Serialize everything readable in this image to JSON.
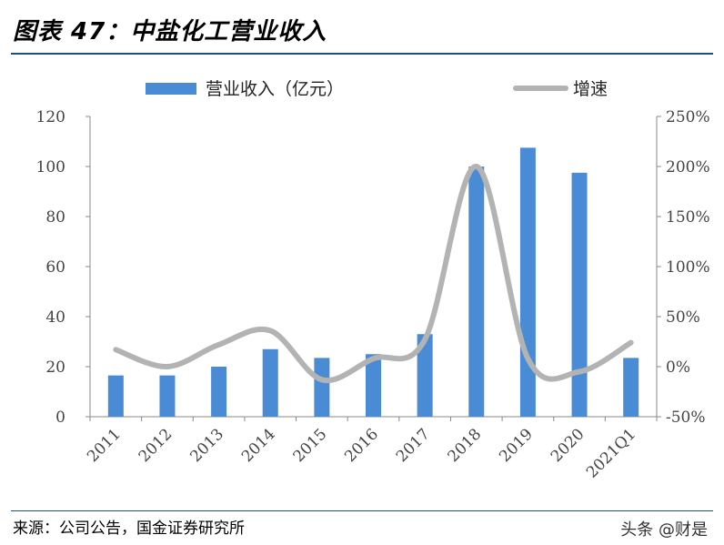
{
  "header": {
    "title": "图表 47：中盐化工营业收入"
  },
  "footer": {
    "source": "来源：公司公告，国金证券研究所",
    "watermark": "头条 @财是"
  },
  "colors": {
    "bar": "#4a8bd6",
    "line": "#b3b3b3",
    "rule": "#1f4e79"
  },
  "chart_data": {
    "type": "bar",
    "categories": [
      "2011",
      "2012",
      "2013",
      "2014",
      "2015",
      "2016",
      "2017",
      "2018",
      "2019",
      "2020",
      "2021Q1"
    ],
    "series": [
      {
        "name": "营业收入（亿元）",
        "type": "bar",
        "axis": "left",
        "values": [
          16.5,
          16.5,
          20,
          27,
          23.5,
          25,
          33,
          100,
          107.5,
          97.5,
          23.5
        ]
      },
      {
        "name": "增速",
        "type": "line",
        "axis": "right",
        "unit": "%",
        "values": [
          17,
          0,
          22,
          36,
          -13,
          8,
          27,
          200,
          8,
          -5,
          24
        ]
      }
    ],
    "y_left": {
      "lim": [
        0,
        120
      ],
      "ticks": [
        "0",
        "20",
        "40",
        "60",
        "80",
        "100",
        "120"
      ]
    },
    "y_right": {
      "lim": [
        -50,
        250
      ],
      "ticks": [
        "-50%",
        "0%",
        "50%",
        "100%",
        "150%",
        "200%",
        "250%"
      ]
    },
    "legend": {
      "placement": "top",
      "items": [
        "营业收入（亿元）",
        "增速"
      ]
    },
    "grid": false
  }
}
